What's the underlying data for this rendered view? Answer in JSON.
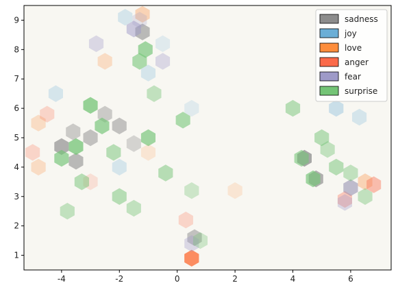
{
  "chart_data": {
    "type": "hexbin",
    "xlim": [
      -5.3,
      7.4
    ],
    "ylim": [
      0.5,
      9.5
    ],
    "xticks": [
      -4,
      -2,
      0,
      2,
      4,
      6
    ],
    "yticks": [
      1,
      2,
      3,
      4,
      5,
      6,
      7,
      8,
      9
    ],
    "legend": "upper right",
    "series": [
      {
        "name": "sadness",
        "color": "#8c8c8c",
        "x": [
          -4,
          -3.5,
          -1.2,
          4.4,
          4.8,
          -3,
          -2,
          0.6,
          6,
          -2.5,
          -3.6,
          -1.5
        ],
        "y": [
          4.7,
          4.2,
          8.6,
          4.3,
          3.6,
          5,
          5.4,
          1.6,
          3.3,
          5.8,
          5.2,
          4.8
        ],
        "values": [
          8,
          7,
          7,
          9,
          8,
          6,
          6,
          6,
          4,
          5,
          5,
          4
        ]
      },
      {
        "name": "joy",
        "color": "#6baed6",
        "x": [
          -1.8,
          -4.2,
          -1,
          5.5,
          -2,
          0.5,
          -0.5,
          6.3
        ],
        "y": [
          9.1,
          6.5,
          7.2,
          6,
          4,
          6,
          8.2,
          5.7
        ],
        "values": [
          3,
          3,
          3,
          4,
          3,
          2,
          2,
          3
        ]
      },
      {
        "name": "love",
        "color": "#fd8d3c",
        "x": [
          -1.2,
          0.5,
          -4.8,
          -4.8,
          2,
          6.5,
          -1,
          -2.5
        ],
        "y": [
          9.2,
          0.9,
          4,
          5.5,
          3.2,
          3.5,
          4.5,
          7.6
        ],
        "values": [
          4,
          8,
          3,
          3,
          2,
          4,
          2,
          3
        ]
      },
      {
        "name": "anger",
        "color": "#fb6a4a",
        "x": [
          0.5,
          -4.5,
          6.8,
          -3,
          0.3,
          -5,
          5.8
        ],
        "y": [
          0.9,
          5.8,
          3.4,
          3.5,
          2.2,
          4.5,
          2.9
        ],
        "values": [
          6,
          3,
          5,
          2,
          3,
          3,
          4
        ]
      },
      {
        "name": "fear",
        "color": "#9e9ac8",
        "x": [
          -1.5,
          -2.8,
          6,
          -0.5,
          0.5,
          5.8,
          -1.3
        ],
        "y": [
          8.7,
          8.2,
          3.3,
          7.6,
          1.4,
          2.8,
          9
        ],
        "values": [
          6,
          4,
          5,
          4,
          4,
          4,
          3
        ]
      },
      {
        "name": "surprise",
        "color": "#74c476",
        "x": [
          -3,
          -2.6,
          -3.5,
          -4,
          -1,
          -1.3,
          -1.1,
          0.2,
          -2,
          -0.4,
          -1.5,
          4.7,
          4.3,
          5,
          5.5,
          6,
          6.5,
          -3.8,
          0.8,
          4,
          -3.3,
          -2.2,
          -0.8,
          0.5,
          5.2
        ],
        "y": [
          6.1,
          5.4,
          4.7,
          4.3,
          5,
          7.6,
          8,
          5.6,
          3,
          3.8,
          2.6,
          3.6,
          4.3,
          5,
          4,
          3.8,
          3,
          2.5,
          1.5,
          6,
          3.5,
          4.5,
          6.5,
          3.2,
          4.6
        ],
        "values": [
          9,
          8,
          9,
          8,
          8,
          7,
          8,
          7,
          6,
          6,
          5,
          8,
          7,
          6,
          6,
          5,
          5,
          5,
          4,
          6,
          6,
          6,
          5,
          4,
          5
        ]
      }
    ]
  }
}
